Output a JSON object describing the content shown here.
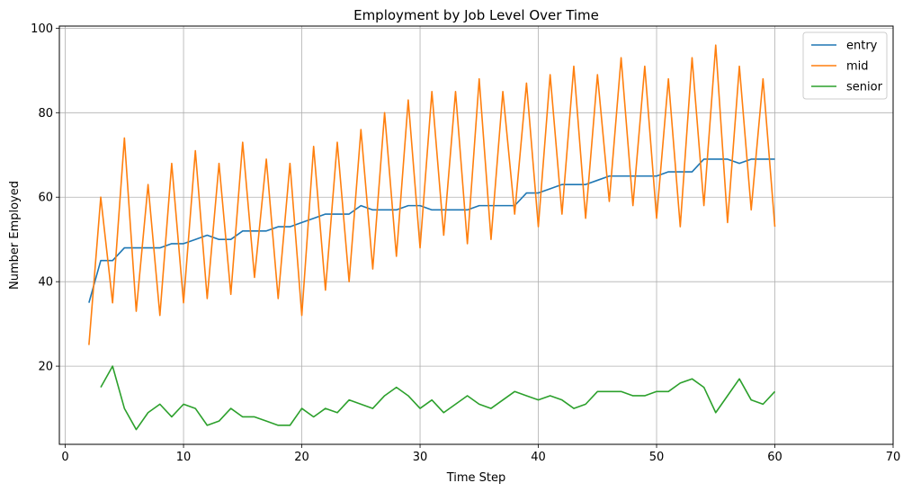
{
  "chart_data": {
    "type": "line",
    "title": "Employment by Job Level Over Time",
    "xlabel": "Time Step",
    "ylabel": "Number Employed",
    "xlim": [
      -0.5,
      70
    ],
    "ylim": [
      1.5,
      100.5
    ],
    "xticks": [
      0,
      10,
      20,
      30,
      40,
      50,
      60,
      70
    ],
    "yticks": [
      20,
      40,
      60,
      80,
      100
    ],
    "grid": true,
    "legend_position": "top-right",
    "colors": {
      "entry": "#1f77b4",
      "mid": "#ff7f0e",
      "senior": "#2ca02c",
      "grid": "#b0b0b0"
    },
    "series": [
      {
        "name": "entry",
        "x": [
          2,
          3,
          4,
          5,
          6,
          7,
          8,
          9,
          10,
          11,
          12,
          13,
          14,
          15,
          16,
          17,
          18,
          19,
          20,
          21,
          22,
          23,
          24,
          25,
          26,
          27,
          28,
          29,
          30,
          31,
          32,
          33,
          34,
          35,
          36,
          37,
          38,
          39,
          40,
          41,
          42,
          43,
          44,
          45,
          46,
          47,
          48,
          49,
          50,
          51,
          52,
          53,
          54,
          55,
          56,
          57,
          58,
          59,
          60
        ],
        "y": [
          35,
          45,
          45,
          48,
          48,
          48,
          48,
          49,
          49,
          50,
          51,
          50,
          50,
          52,
          52,
          52,
          53,
          53,
          54,
          55,
          56,
          56,
          56,
          58,
          57,
          57,
          57,
          58,
          58,
          57,
          57,
          57,
          57,
          58,
          58,
          58,
          58,
          61,
          61,
          62,
          63,
          63,
          63,
          64,
          65,
          65,
          65,
          65,
          65,
          66,
          66,
          66,
          69,
          69,
          69,
          68,
          69,
          69,
          69
        ]
      },
      {
        "name": "mid",
        "x": [
          2,
          3,
          4,
          5,
          6,
          7,
          8,
          9,
          10,
          11,
          12,
          13,
          14,
          15,
          16,
          17,
          18,
          19,
          20,
          21,
          22,
          23,
          24,
          25,
          26,
          27,
          28,
          29,
          30,
          31,
          32,
          33,
          34,
          35,
          36,
          37,
          38,
          39,
          40,
          41,
          42,
          43,
          44,
          45,
          46,
          47,
          48,
          49,
          50,
          51,
          52,
          53,
          54,
          55,
          56,
          57,
          58,
          59,
          60
        ],
        "y": [
          25,
          60,
          35,
          74,
          33,
          63,
          32,
          68,
          35,
          71,
          36,
          68,
          37,
          73,
          41,
          69,
          36,
          68,
          32,
          72,
          38,
          73,
          40,
          76,
          43,
          80,
          46,
          83,
          48,
          85,
          51,
          85,
          49,
          88,
          50,
          85,
          56,
          87,
          53,
          89,
          56,
          91,
          55,
          89,
          59,
          93,
          58,
          91,
          55,
          88,
          53,
          93,
          58,
          96,
          54,
          91,
          57,
          88,
          53
        ]
      },
      {
        "name": "senior",
        "x": [
          3,
          4,
          5,
          6,
          7,
          8,
          9,
          10,
          11,
          12,
          13,
          14,
          15,
          16,
          17,
          18,
          19,
          20,
          21,
          22,
          23,
          24,
          25,
          26,
          27,
          28,
          29,
          30,
          31,
          32,
          33,
          34,
          35,
          36,
          37,
          38,
          39,
          40,
          41,
          42,
          43,
          44,
          45,
          46,
          47,
          48,
          49,
          50,
          51,
          52,
          53,
          54,
          55,
          56,
          57,
          58,
          59,
          60
        ],
        "y": [
          15,
          20,
          10,
          5,
          9,
          11,
          8,
          11,
          10,
          6,
          7,
          10,
          8,
          8,
          7,
          6,
          6,
          10,
          8,
          10,
          9,
          12,
          11,
          10,
          13,
          15,
          13,
          10,
          12,
          9,
          11,
          13,
          11,
          10,
          12,
          14,
          13,
          12,
          13,
          12,
          10,
          11,
          14,
          14,
          14,
          13,
          13,
          14,
          14,
          16,
          17,
          15,
          9,
          13,
          17,
          12,
          11,
          14
        ]
      }
    ]
  }
}
